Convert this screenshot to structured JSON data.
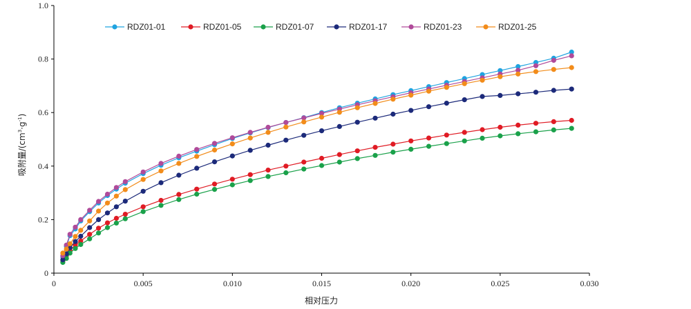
{
  "chart_data": {
    "type": "line",
    "xlabel": "相对压力",
    "ylabel_main": "吸附量/(cm",
    "ylabel_sup1": "3",
    "ylabel_mid": "·g",
    "ylabel_sup2": "-1",
    "ylabel_end": ")",
    "xlim": [
      0,
      0.03
    ],
    "ylim": [
      0,
      1.0
    ],
    "x_ticks": [
      0,
      0.005,
      0.01,
      0.015,
      0.02,
      0.025,
      0.03
    ],
    "x_tick_labels": [
      "0",
      "0.005",
      "0.010",
      "0.015",
      "0.020",
      "0.025",
      "0.030"
    ],
    "y_ticks": [
      0,
      0.2,
      0.4,
      0.6,
      0.8,
      1.0
    ],
    "y_tick_labels": [
      "0",
      "0.2",
      "0.4",
      "0.6",
      "0.8",
      "1.0"
    ],
    "grid": false,
    "legend_position": "top",
    "x": [
      0.0005,
      0.0007,
      0.0009,
      0.0012,
      0.0015,
      0.002,
      0.0025,
      0.003,
      0.0035,
      0.004,
      0.005,
      0.006,
      0.007,
      0.008,
      0.009,
      0.01,
      0.011,
      0.012,
      0.013,
      0.014,
      0.015,
      0.016,
      0.017,
      0.018,
      0.019,
      0.02,
      0.021,
      0.022,
      0.023,
      0.024,
      0.025,
      0.026,
      0.027,
      0.028,
      0.029
    ],
    "series": [
      {
        "name": "RDZ01-01",
        "color": "#1fa3e0",
        "values": [
          0.06,
          0.1,
          0.14,
          0.165,
          0.195,
          0.23,
          0.262,
          0.29,
          0.314,
          0.336,
          0.372,
          0.403,
          0.431,
          0.456,
          0.48,
          0.503,
          0.524,
          0.544,
          0.563,
          0.581,
          0.6,
          0.618,
          0.635,
          0.651,
          0.667,
          0.682,
          0.697,
          0.712,
          0.727,
          0.742,
          0.757,
          0.772,
          0.787,
          0.803,
          0.826
        ]
      },
      {
        "name": "RDZ01-05",
        "color": "#e01b24",
        "values": [
          0.045,
          0.065,
          0.085,
          0.105,
          0.12,
          0.145,
          0.168,
          0.188,
          0.205,
          0.22,
          0.248,
          0.272,
          0.294,
          0.314,
          0.333,
          0.351,
          0.368,
          0.385,
          0.4,
          0.415,
          0.429,
          0.443,
          0.457,
          0.47,
          0.482,
          0.494,
          0.505,
          0.516,
          0.526,
          0.536,
          0.545,
          0.553,
          0.56,
          0.566,
          0.571
        ]
      },
      {
        "name": "RDZ01-07",
        "color": "#1aa14a",
        "values": [
          0.04,
          0.055,
          0.075,
          0.092,
          0.107,
          0.128,
          0.15,
          0.17,
          0.187,
          0.203,
          0.23,
          0.253,
          0.275,
          0.295,
          0.313,
          0.33,
          0.346,
          0.361,
          0.375,
          0.389,
          0.402,
          0.415,
          0.428,
          0.44,
          0.452,
          0.463,
          0.474,
          0.484,
          0.494,
          0.504,
          0.513,
          0.521,
          0.528,
          0.535,
          0.541
        ]
      },
      {
        "name": "RDZ01-17",
        "color": "#1c2a7a",
        "values": [
          0.05,
          0.072,
          0.095,
          0.118,
          0.138,
          0.17,
          0.2,
          0.225,
          0.248,
          0.269,
          0.306,
          0.338,
          0.366,
          0.392,
          0.416,
          0.438,
          0.459,
          0.478,
          0.497,
          0.515,
          0.532,
          0.548,
          0.564,
          0.579,
          0.594,
          0.608,
          0.622,
          0.635,
          0.648,
          0.66,
          0.664,
          0.67,
          0.676,
          0.683,
          0.688
        ]
      },
      {
        "name": "RDZ01-23",
        "color": "#b04a9a",
        "values": [
          0.065,
          0.105,
          0.145,
          0.172,
          0.2,
          0.235,
          0.268,
          0.295,
          0.32,
          0.342,
          0.378,
          0.41,
          0.437,
          0.462,
          0.485,
          0.506,
          0.526,
          0.545,
          0.563,
          0.58,
          0.597,
          0.613,
          0.629,
          0.644,
          0.659,
          0.674,
          0.688,
          0.702,
          0.716,
          0.73,
          0.744,
          0.758,
          0.775,
          0.795,
          0.812
        ]
      },
      {
        "name": "RDZ01-25",
        "color": "#f28c1a",
        "values": [
          0.075,
          0.09,
          0.11,
          0.137,
          0.16,
          0.195,
          0.232,
          0.262,
          0.288,
          0.312,
          0.35,
          0.382,
          0.41,
          0.436,
          0.46,
          0.483,
          0.505,
          0.526,
          0.546,
          0.565,
          0.583,
          0.601,
          0.618,
          0.634,
          0.65,
          0.665,
          0.68,
          0.694,
          0.708,
          0.721,
          0.734,
          0.744,
          0.753,
          0.761,
          0.768
        ]
      }
    ]
  }
}
